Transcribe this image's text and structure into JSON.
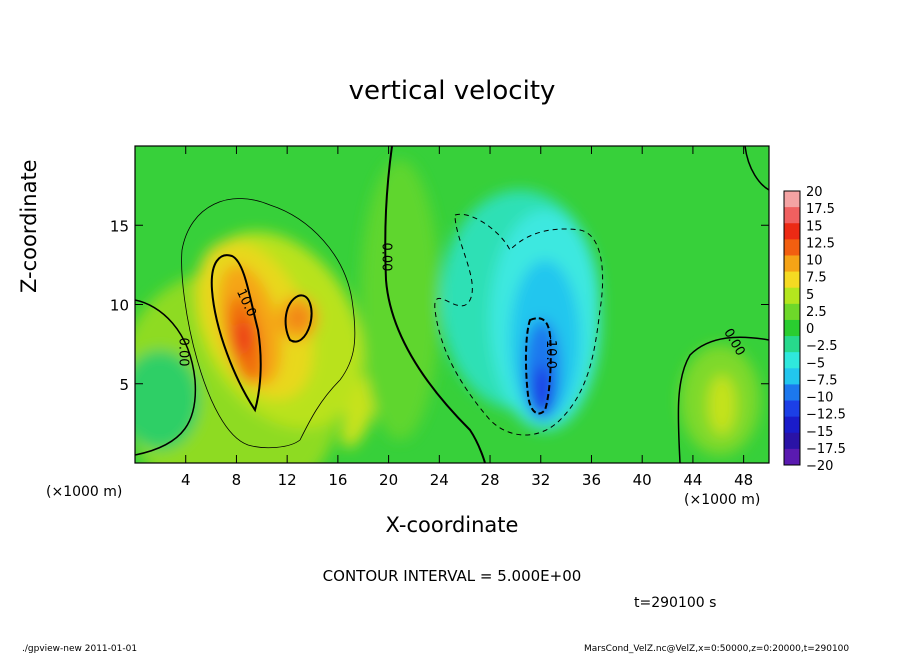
{
  "chart_data": {
    "type": "heatmap",
    "title": "vertical velocity",
    "xlabel": "X-coordinate",
    "ylabel": "Z-coordinate",
    "x_unit": "(×1000 m)",
    "y_unit": "(×1000 m)",
    "xlim": [
      0,
      50
    ],
    "ylim": [
      0,
      20
    ],
    "x_ticks": [
      4,
      8,
      12,
      16,
      20,
      24,
      28,
      32,
      36,
      40,
      44,
      48
    ],
    "y_ticks": [
      5,
      10,
      15
    ],
    "contour_interval_text": "CONTOUR INTERVAL = 5.000E+00",
    "contour_labels": [
      {
        "text": "0.00",
        "x": 3.5,
        "z": 7.0,
        "rot": 90
      },
      {
        "text": "10.0",
        "x": 8.5,
        "z": 10.0,
        "rot": 65
      },
      {
        "text": "0.00",
        "x": 19.5,
        "z": 13.0,
        "rot": 90
      },
      {
        "text": "-10.0",
        "x": 32.5,
        "z": 7.0,
        "rot": 90
      },
      {
        "text": "0.00",
        "x": 47.0,
        "z": 7.5,
        "rot": 60
      }
    ],
    "features": [
      {
        "name": "updraft",
        "x": 8.5,
        "z": 8.0,
        "peak": 18
      },
      {
        "name": "updraft",
        "x": 13.0,
        "z": 10.0,
        "peak": 12
      },
      {
        "name": "downdraft",
        "x": 32.0,
        "z": 5.0,
        "peak": -13
      }
    ],
    "colorbar": {
      "labels": [
        "20",
        "17.5",
        "15",
        "12.5",
        "10",
        "7.5",
        "5",
        "2.5",
        "0",
        "−2.5",
        "−5",
        "−7.5",
        "−10",
        "−12.5",
        "−15",
        "−17.5",
        "−20"
      ],
      "colors": [
        "#f4a3a3",
        "#f06060",
        "#ec2a14",
        "#f25f10",
        "#f5a316",
        "#f5da22",
        "#b4e61e",
        "#6ed82a",
        "#2acd30",
        "#27d98c",
        "#2fe8dd",
        "#22c6ee",
        "#1c78ee",
        "#1c3fe6",
        "#1a1cca",
        "#2a13a6",
        "#5a1ab0"
      ]
    },
    "time_text": "t=290100 s"
  },
  "footer": {
    "left": "./gpview-new   2011-01-01",
    "right": "MarsCond_VelZ.nc@VelZ,x=0:50000,z=0:20000,t=290100"
  },
  "colors": {
    "background": "#37d03a",
    "contour": "#000000"
  }
}
